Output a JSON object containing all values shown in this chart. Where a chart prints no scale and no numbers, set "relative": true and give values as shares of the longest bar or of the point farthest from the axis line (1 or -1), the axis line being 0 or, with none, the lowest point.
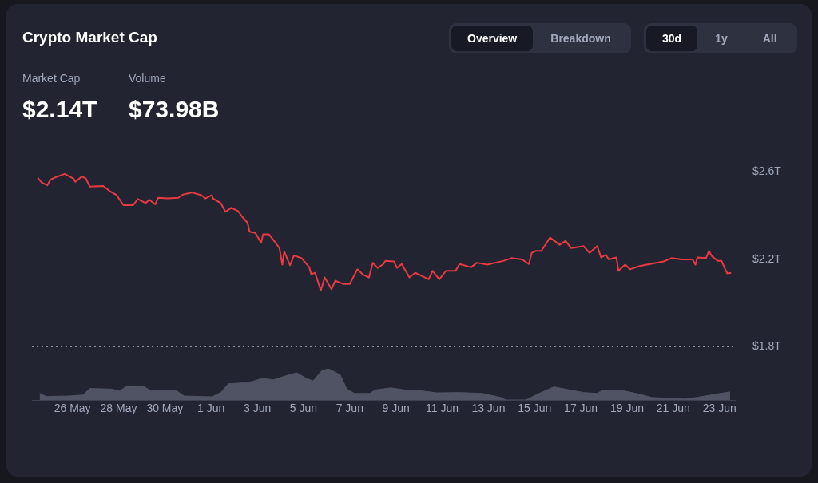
{
  "chart_data": [
    {
      "type": "line",
      "title": "Crypto Market Cap",
      "annotations": [
        "Overview",
        "Breakdown",
        "30d",
        "1y",
        "All",
        "Market Cap",
        "$2.14T",
        "Volume",
        "$73.98B"
      ],
      "series": [
        {
          "color": "#ea3943",
          "x": [
            "--05-24T12:00",
            "--05-24T16:00",
            "--05-24T22:00",
            "--05-25T01:00",
            "--05-25T05:00",
            "--05-25T16:00",
            "--05-26T01:00",
            "--05-26T03:00",
            "--05-26T10:00",
            "--05-26T14:00",
            "--05-26T18:00",
            "--05-27T08:00",
            "--05-27T15:00",
            "--05-27T22:00",
            "--05-28T05:00",
            "--05-28T15:00",
            "--05-28T20:00",
            "--05-29T04:00",
            "--05-29T08:00",
            "--05-29T14:00",
            "--05-29T17:00",
            "--05-30T03:00",
            "--05-30T14:00",
            "--05-30T19:00",
            "--05-31T04:00",
            "--05-31T14:00",
            "--05-31T18:00",
            "--06-01T01:00",
            "--06-01T02:00",
            "--06-01T10:00",
            "--06-01T15:00",
            "--06-01T21:00",
            "--06-02T04:00",
            "--06-02T08:00",
            "--06-02T14:00",
            "--06-02T16:00",
            "--06-02T22:00",
            "--06-03T04:00",
            "--06-03T06:00",
            "--06-03T12:00",
            "--06-03T19:00",
            "--06-03T23:00",
            "--06-04T02:00",
            "--06-04T04:00",
            "--06-04T10:00",
            "--06-04T14:00",
            "--06-04T22:00",
            "--06-05T06:00",
            "--06-05T08:00",
            "--06-05T12:00",
            "--06-05T18:00",
            "--06-05T22:00",
            "--06-06T05:00",
            "--06-06T09:00",
            "--06-06T17:00",
            "--06-07T00:00",
            "--06-07T08:00",
            "--06-07T14:00",
            "--06-07T20:00",
            "--06-08T00:00",
            "--06-08T05:00",
            "--06-08T11:00",
            "--06-08T13:00",
            "--06-08T22:00",
            "--06-09T01:00",
            "--06-09T06:00",
            "--06-09T14:00",
            "--06-09T20:00",
            "--06-10T10:00",
            "--06-10T14:00",
            "--06-10T21:00",
            "--06-11T04:00",
            "--06-11T14:00",
            "--06-11T18:00",
            "--06-12T06:00",
            "--06-12T12:00",
            "--06-12T23:00",
            "--06-13T16:00",
            "--06-14T00:00",
            "--06-14T11:00",
            "--06-14T18:00",
            "--06-14T21:00",
            "--06-15T01:00",
            "--06-15T07:00",
            "--06-15T16:00",
            "--06-16T02:00",
            "--06-16T08:00",
            "--06-16T14:00",
            "--06-17T03:00",
            "--06-17T09:00",
            "--06-17T17:00",
            "--06-17T21:00",
            "--06-18T02:00",
            "--06-18T05:00",
            "--06-18T13:00",
            "--06-18T15:00",
            "--06-18T22:00",
            "--06-19T03:00",
            "--06-19T13:00",
            "--06-20T00:00",
            "--06-20T14:00",
            "--06-20T22:00",
            "--06-21T09:00",
            "--06-21T20:00",
            "--06-21T23:00",
            "--06-22T01:00",
            "--06-22T10:00",
            "--06-22T13:00",
            "--06-22T16:00",
            "--06-22T22:00",
            "--06-23T02:00",
            "--06-23T08:00",
            "--06-23T12:00"
          ],
          "values": [
            2.574,
            2.552,
            2.539,
            2.564,
            2.573,
            2.591,
            2.57,
            2.555,
            2.579,
            2.57,
            2.533,
            2.536,
            2.512,
            2.494,
            2.448,
            2.448,
            2.476,
            2.458,
            2.473,
            2.452,
            2.482,
            2.479,
            2.482,
            2.497,
            2.506,
            2.494,
            2.479,
            2.494,
            2.479,
            2.458,
            2.418,
            2.436,
            2.421,
            2.397,
            2.367,
            2.327,
            2.321,
            2.276,
            2.315,
            2.315,
            2.276,
            2.252,
            2.176,
            2.236,
            2.173,
            2.218,
            2.206,
            2.164,
            2.133,
            2.139,
            2.058,
            2.118,
            2.064,
            2.103,
            2.088,
            2.088,
            2.155,
            2.13,
            2.118,
            2.185,
            2.161,
            2.179,
            2.194,
            2.191,
            2.161,
            2.179,
            2.118,
            2.139,
            2.109,
            2.148,
            2.109,
            2.148,
            2.148,
            2.179,
            2.164,
            2.185,
            2.176,
            2.194,
            2.206,
            2.2,
            2.179,
            2.23,
            2.239,
            2.239,
            2.3,
            2.267,
            2.285,
            2.252,
            2.261,
            2.23,
            2.261,
            2.209,
            2.221,
            2.2,
            2.209,
            2.148,
            2.176,
            2.155,
            2.17,
            2.179,
            2.191,
            2.206,
            2.2,
            2.2,
            2.176,
            2.209,
            2.206,
            2.239,
            2.215,
            2.194,
            2.194,
            2.136,
            2.139
          ]
        }
      ],
      "xlim": [
        "--05-24T06:00",
        "--06-23T16:00"
      ],
      "ylim": [
        1.8,
        2.6
      ],
      "yticks": [
        {
          "value": 1.8,
          "label": "$1.8T"
        },
        {
          "value": 2.0,
          "label": null
        },
        {
          "value": 2.2,
          "label": "$2.2T"
        },
        {
          "value": 2.4,
          "label": null
        },
        {
          "value": 2.6,
          "label": "$2.6T"
        }
      ],
      "grid": "y",
      "tick_labels": "y"
    },
    {
      "type": "area",
      "relative": true,
      "color": "#4f5363",
      "x": [
        "--05-24T14:00",
        "--05-24T21:00",
        "--05-25T21:00",
        "--05-26T11:00",
        "--05-26T18:00",
        "--05-27T16:00",
        "--05-28T01:00",
        "--05-28T09:00",
        "--05-29T01:00",
        "--05-29T08:00",
        "--05-30T11:00",
        "--05-30T20:00",
        "--06-01T01:00",
        "--06-01T10:00",
        "--06-01T18:00",
        "--06-02T15:00",
        "--06-03T05:00",
        "--06-03T17:00",
        "--06-04T05:00",
        "--06-04T17:00",
        "--06-05T03:00",
        "--06-05T10:00",
        "--06-05T19:00",
        "--06-06T02:00",
        "--06-06T14:00",
        "--06-06T21:00",
        "--06-07T05:00",
        "--06-07T21:00",
        "--06-08T02:00",
        "--06-08T19:00",
        "--06-09T09:00",
        "--06-10T04:00",
        "--06-10T18:00",
        "--06-11T18:00",
        "--06-12T18:00",
        "--06-13T13:00",
        "--06-13T18:00",
        "--06-14T15:00",
        "--06-15T01:00",
        "--06-15T20:00",
        "--06-16T13:00",
        "--06-17T03:00",
        "--06-17T17:00",
        "--06-17T22:00",
        "--06-18T17:00",
        "--06-19T12:00",
        "--06-20T02:00",
        "--06-21T12:00",
        "--06-22T00:00",
        "--06-22T21:00",
        "--06-23T11:00"
      ],
      "values": [
        0.21,
        0.11,
        0.13,
        0.16,
        0.37,
        0.35,
        0.29,
        0.45,
        0.45,
        0.32,
        0.32,
        0.13,
        0.1,
        0.24,
        0.52,
        0.56,
        0.69,
        0.65,
        0.77,
        0.87,
        0.69,
        0.61,
        0.94,
        1,
        0.81,
        0.35,
        0.21,
        0.21,
        0.32,
        0.39,
        0.32,
        0.29,
        0.23,
        0.24,
        0.21,
        0.08,
        0,
        0,
        0.16,
        0.42,
        0.32,
        0.24,
        0.21,
        0.31,
        0.32,
        0.19,
        0.08,
        0.03,
        0.08,
        0.19,
        0.26
      ],
      "xlim": [
        "--05-24T06:00",
        "--06-23T16:00"
      ],
      "xticks": [
        {
          "value": "--05-26",
          "label": "26 May"
        },
        {
          "value": "--05-28",
          "label": "28 May"
        },
        {
          "value": "--05-30",
          "label": "30 May"
        },
        {
          "value": "--06-01",
          "label": "1 Jun"
        },
        {
          "value": "--06-03",
          "label": "3 Jun"
        },
        {
          "value": "--06-05",
          "label": "5 Jun"
        },
        {
          "value": "--06-07",
          "label": "7 Jun"
        },
        {
          "value": "--06-09",
          "label": "9 Jun"
        },
        {
          "value": "--06-11",
          "label": "11 Jun"
        },
        {
          "value": "--06-13",
          "label": "13 Jun"
        },
        {
          "value": "--06-15",
          "label": "15 Jun"
        },
        {
          "value": "--06-17",
          "label": "17 Jun"
        },
        {
          "value": "--06-19",
          "label": "19 Jun"
        },
        {
          "value": "--06-21",
          "label": "21 Jun"
        },
        {
          "value": "--06-23",
          "label": "23 Jun"
        }
      ],
      "tick_labels": "x"
    }
  ]
}
